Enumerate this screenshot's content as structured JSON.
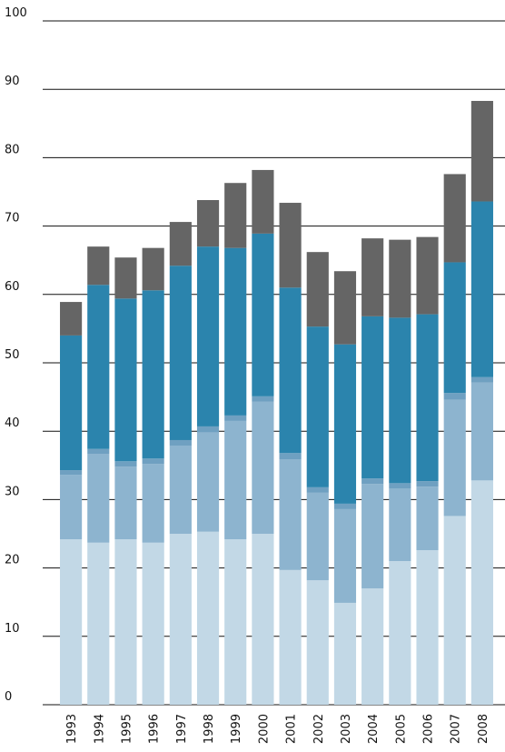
{
  "chart_data": {
    "type": "stacked_bar",
    "categories": [
      "1993",
      "1994",
      "1995",
      "1996",
      "1997",
      "1998",
      "1999",
      "2000",
      "2001",
      "2002",
      "2003",
      "2004",
      "2005",
      "2006",
      "2007",
      "2008"
    ],
    "series": [
      {
        "color": "#c2d8e6",
        "values": [
          24.2,
          23.7,
          24.2,
          23.7,
          25.0,
          25.3,
          24.2,
          25.0,
          19.7,
          18.2,
          14.9,
          17.0,
          21.0,
          22.6,
          27.6,
          32.8
        ]
      },
      {
        "color": "#8db4cf",
        "values": [
          9.4,
          13.0,
          10.6,
          11.5,
          12.9,
          14.5,
          17.3,
          19.3,
          16.2,
          12.8,
          13.7,
          15.3,
          10.6,
          9.3,
          17.0,
          14.3
        ]
      },
      {
        "color": "#6fa0c1",
        "values": [
          0.7,
          0.7,
          0.8,
          0.8,
          0.8,
          0.9,
          0.8,
          0.8,
          0.9,
          0.8,
          0.8,
          0.8,
          0.8,
          0.8,
          1.0,
          0.8
        ]
      },
      {
        "color": "#2b84ad",
        "values": [
          19.7,
          24.0,
          23.8,
          24.6,
          25.5,
          26.3,
          24.5,
          23.8,
          24.2,
          23.5,
          23.3,
          23.7,
          24.2,
          24.4,
          19.1,
          25.7
        ]
      },
      {
        "color": "#656565",
        "values": [
          4.9,
          5.6,
          6.0,
          6.2,
          6.4,
          6.8,
          9.5,
          9.3,
          12.4,
          10.9,
          10.7,
          11.4,
          11.4,
          11.3,
          12.9,
          14.7
        ]
      }
    ],
    "ylim": [
      0,
      100
    ],
    "yticks": [
      0,
      10,
      20,
      30,
      40,
      50,
      60,
      70,
      80,
      90,
      100
    ],
    "grid": true
  }
}
